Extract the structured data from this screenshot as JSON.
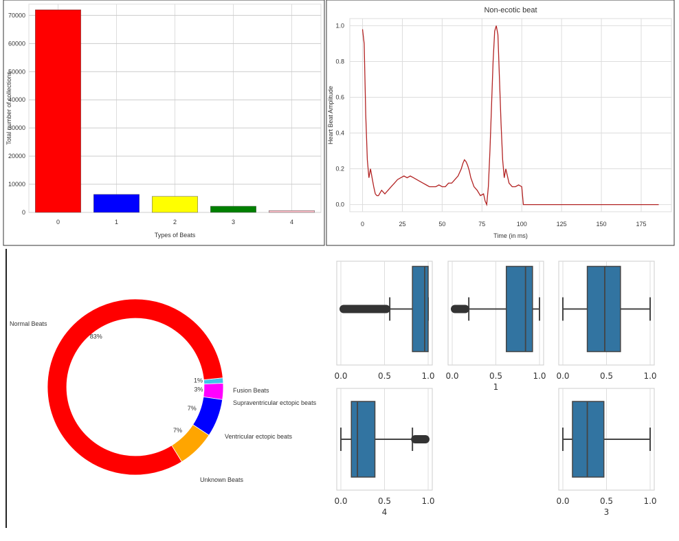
{
  "chart_data": [
    {
      "type": "bar",
      "categories": [
        "0",
        "1",
        "2",
        "3",
        "4"
      ],
      "values": [
        72000,
        6400,
        5700,
        2200,
        650
      ],
      "colors": [
        "#ff0000",
        "#0000ff",
        "#ffff00",
        "#008000",
        "#ffc0cb"
      ],
      "xlabel": "Types of Beats",
      "ylabel": "Total number of collections",
      "ylim": [
        0,
        74000
      ],
      "yticks": [
        0,
        10000,
        20000,
        30000,
        40000,
        50000,
        60000,
        70000
      ],
      "grid": true
    },
    {
      "type": "line",
      "title": "Non-ecotic beat",
      "xlabel": "Time (in ms)",
      "ylabel": "Heart Beat Amplitude",
      "xlim": [
        -8,
        194
      ],
      "ylim": [
        -0.04,
        1.04
      ],
      "xticks": [
        0,
        25,
        50,
        75,
        100,
        125,
        150,
        175
      ],
      "yticks": [
        "0.0",
        "0.2",
        "0.4",
        "0.6",
        "0.8",
        "1.0"
      ],
      "color": "#b22222",
      "x": [
        0,
        1,
        2,
        3,
        4,
        5,
        6,
        7,
        8,
        9,
        10,
        12,
        14,
        16,
        18,
        20,
        22,
        24,
        26,
        28,
        30,
        32,
        34,
        36,
        38,
        40,
        42,
        44,
        46,
        48,
        50,
        52,
        54,
        56,
        58,
        60,
        62,
        63,
        64,
        65,
        66,
        67,
        68,
        70,
        72,
        74,
        76,
        77,
        78,
        79,
        80,
        81,
        82,
        83,
        84,
        85,
        86,
        87,
        88,
        89,
        90,
        92,
        94,
        96,
        98,
        100,
        101,
        110,
        120,
        130,
        140,
        150,
        160,
        170,
        180,
        186
      ],
      "y": [
        0.98,
        0.9,
        0.5,
        0.25,
        0.15,
        0.2,
        0.15,
        0.1,
        0.06,
        0.05,
        0.05,
        0.08,
        0.06,
        0.08,
        0.1,
        0.12,
        0.14,
        0.15,
        0.16,
        0.15,
        0.16,
        0.15,
        0.14,
        0.13,
        0.12,
        0.11,
        0.1,
        0.1,
        0.1,
        0.11,
        0.1,
        0.1,
        0.12,
        0.12,
        0.14,
        0.16,
        0.2,
        0.23,
        0.25,
        0.24,
        0.22,
        0.19,
        0.15,
        0.1,
        0.08,
        0.05,
        0.06,
        0.02,
        0.0,
        0.1,
        0.3,
        0.55,
        0.8,
        0.97,
        1.0,
        0.95,
        0.7,
        0.45,
        0.25,
        0.15,
        0.2,
        0.12,
        0.1,
        0.1,
        0.11,
        0.1,
        0.0,
        0.0,
        0.0,
        0.0,
        0.0,
        0.0,
        0.0,
        0.0,
        0.0,
        0.0
      ]
    },
    {
      "type": "pie",
      "donut": true,
      "labels": [
        "Normal Beats",
        "Unknown Beats",
        "Ventricular ectopic beats",
        "Supraventricular ectopic beats",
        "Fusion Beats"
      ],
      "values": [
        83,
        7,
        7,
        3,
        1
      ],
      "value_labels": [
        "83%",
        "7%",
        "7%",
        "3%",
        "1%"
      ],
      "colors": [
        "#ff0000",
        "#ffa500",
        "#0000ff",
        "#ff00ff",
        "#40c4e8"
      ]
    },
    {
      "type": "box",
      "panels": [
        {
          "label": "",
          "whisker_low": 0.56,
          "q1": 0.82,
          "median": 0.96,
          "q3": 1.0,
          "whisker_high": 1.0,
          "outliers": [
            0.0,
            0.55
          ],
          "xticks": [
            "0.0",
            "0.5",
            "1.0"
          ]
        },
        {
          "label": "1",
          "whisker_low": 0.19,
          "q1": 0.62,
          "median": 0.84,
          "q3": 0.92,
          "whisker_high": 1.0,
          "outliers": [
            0.0,
            0.18
          ],
          "xticks": [
            "0.0",
            "0.5",
            "1.0"
          ]
        },
        {
          "label": "",
          "whisker_low": 0.0,
          "q1": 0.28,
          "median": 0.48,
          "q3": 0.66,
          "whisker_high": 1.0,
          "outliers": [],
          "xticks": [
            "0.0",
            "0.5",
            "1.0"
          ]
        },
        {
          "label": "4",
          "whisker_low": 0.0,
          "q1": 0.12,
          "median": 0.19,
          "q3": 0.39,
          "whisker_high": 0.82,
          "outliers": [
            0.82,
            1.0
          ],
          "xticks": [
            "0.0",
            "0.5",
            "1.0"
          ]
        },
        {
          "label": "3",
          "whisker_low": 0.0,
          "q1": 0.11,
          "median": 0.28,
          "q3": 0.47,
          "whisker_high": 1.0,
          "outliers": [],
          "xticks": [
            "0.0",
            "0.5",
            "1.0"
          ]
        }
      ]
    }
  ]
}
